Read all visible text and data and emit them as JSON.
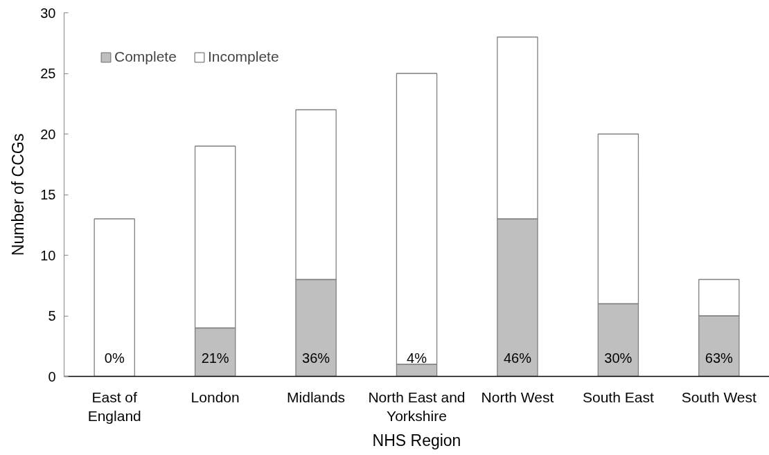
{
  "chart_data": {
    "type": "bar",
    "stacked": true,
    "xlabel": "NHS Region",
    "ylabel": "Number of CCGs",
    "categories": [
      "East of England",
      "London",
      "Midlands",
      "North East and Yorkshire",
      "North West",
      "South East",
      "South West"
    ],
    "series": [
      {
        "name": "Complete",
        "color": "#bfbfbf",
        "values": [
          0,
          4,
          8,
          1,
          13,
          6,
          5
        ]
      },
      {
        "name": "Incomplete",
        "color": "#ffffff",
        "values": [
          13,
          15,
          14,
          24,
          15,
          14,
          3
        ]
      }
    ],
    "annotations": [
      "0%",
      "21%",
      "36%",
      "4%",
      "46%",
      "30%",
      "63%"
    ],
    "ylim": [
      0,
      30
    ],
    "yticks": [
      0,
      5,
      10,
      15,
      20,
      25,
      30
    ],
    "grid": false,
    "legend": "top left"
  }
}
